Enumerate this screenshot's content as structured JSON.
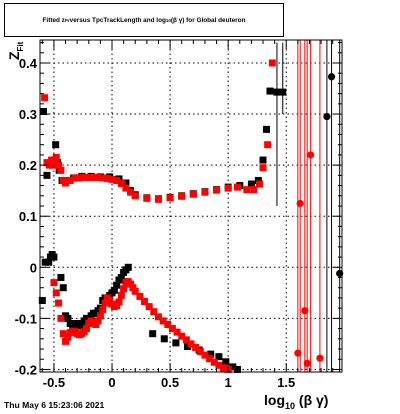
{
  "title": {
    "pre": "Fitted  z",
    "sub1": "Pr",
    "mid": "  versus  TpcTrackLength and log",
    "sub2": "10",
    "post": " (β γ) for Global deuteron"
  },
  "timestamp": "Thu May  6 15:23:06 2021",
  "xlabel": {
    "main": "log",
    "sub": "10",
    "tail": " (β γ)"
  },
  "ylabel": {
    "main": "Z",
    "sub": "Fit"
  },
  "chart_data": {
    "type": "scatter",
    "title": "Fitted z_Pr versus TpcTrackLength and log10(β γ) for Global deuteron",
    "xlabel": "log10(β γ)",
    "ylabel": "Z_Fit",
    "xlim": [
      -0.62,
      1.98
    ],
    "ylim": [
      -0.205,
      0.445
    ],
    "xticks": [
      -0.5,
      0,
      0.5,
      1,
      1.5
    ],
    "xtick_labels": [
      "-0.5",
      "0",
      "0.5",
      "1",
      "1.5"
    ],
    "yticks": [
      -0.2,
      -0.1,
      0,
      0.1,
      0.2,
      0.3,
      0.4
    ],
    "ytick_labels": [
      "-0.2",
      "-0.1",
      "0",
      "0.1",
      "0.2",
      "0.3",
      "0.4"
    ],
    "grid": true,
    "series": [
      {
        "color": "#000000",
        "marker": "square",
        "points": [
          [
            -0.6,
            -0.065
          ],
          [
            -0.59,
            0.305
          ],
          [
            -0.575,
            0.01
          ],
          [
            -0.56,
            0.18
          ],
          [
            -0.545,
            0.01
          ],
          [
            -0.53,
            0.02
          ],
          [
            -0.515,
            0.025
          ],
          [
            -0.5,
            0.02
          ],
          [
            -0.485,
            0.24
          ],
          [
            -0.47,
            0.205
          ],
          [
            -0.455,
            0.19
          ],
          [
            -0.44,
            -0.02
          ],
          [
            -0.43,
            0.17
          ],
          [
            -0.42,
            -0.04
          ],
          [
            -0.4,
            -0.095
          ],
          [
            -0.38,
            -0.1
          ],
          [
            -0.36,
            -0.11
          ],
          [
            -0.34,
            -0.115
          ],
          [
            -0.32,
            -0.12
          ],
          [
            -0.3,
            -0.11
          ],
          [
            -0.28,
            -0.115
          ],
          [
            -0.26,
            -0.11
          ],
          [
            -0.24,
            -0.105
          ],
          [
            -0.22,
            -0.1
          ],
          [
            -0.2,
            -0.105
          ],
          [
            -0.18,
            -0.095
          ],
          [
            -0.16,
            -0.09
          ],
          [
            -0.14,
            -0.09
          ],
          [
            -0.12,
            -0.085
          ],
          [
            -0.1,
            -0.08
          ],
          [
            -0.08,
            -0.065
          ],
          [
            -0.06,
            -0.06
          ],
          [
            -0.04,
            -0.06
          ],
          [
            -0.02,
            -0.055
          ],
          [
            0.0,
            -0.05
          ],
          [
            0.02,
            -0.045
          ],
          [
            0.04,
            -0.035
          ],
          [
            0.06,
            -0.025
          ],
          [
            0.08,
            -0.02
          ],
          [
            0.1,
            -0.01
          ],
          [
            0.12,
            -0.005
          ],
          [
            0.14,
            0.0
          ],
          [
            -0.4,
            0.17
          ],
          [
            -0.33,
            0.175
          ],
          [
            -0.26,
            0.178
          ],
          [
            -0.18,
            0.178
          ],
          [
            -0.1,
            0.177
          ],
          [
            -0.02,
            0.177
          ],
          [
            0.06,
            0.173
          ],
          [
            0.12,
            0.165
          ],
          [
            0.16,
            0.15
          ],
          [
            0.2,
            0.142
          ],
          [
            0.3,
            0.136
          ],
          [
            0.4,
            0.134
          ],
          [
            0.5,
            0.137
          ],
          [
            0.6,
            0.14
          ],
          [
            0.7,
            0.144
          ],
          [
            0.8,
            0.148
          ],
          [
            0.9,
            0.152
          ],
          [
            1.0,
            0.157
          ],
          [
            1.1,
            0.16
          ],
          [
            1.2,
            0.163
          ],
          [
            1.26,
            0.17
          ],
          [
            1.3,
            0.21
          ],
          [
            1.33,
            0.27
          ],
          [
            1.36,
            0.345
          ],
          [
            1.42,
            0.343
          ],
          [
            1.47,
            0.343
          ],
          [
            0.35,
            -0.13
          ],
          [
            0.45,
            -0.14
          ],
          [
            0.55,
            -0.148
          ],
          [
            0.65,
            -0.155
          ],
          [
            0.75,
            -0.162
          ],
          [
            0.85,
            -0.17
          ],
          [
            0.92,
            -0.175
          ],
          [
            0.98,
            -0.185
          ],
          [
            1.04,
            -0.195
          ],
          [
            1.08,
            -0.2
          ],
          [
            1.85,
            0.295
          ],
          [
            1.89,
            0.373
          ],
          [
            1.96,
            -0.012
          ]
        ]
      },
      {
        "color": "#ff0000",
        "marker": "square",
        "points": [
          [
            -0.58,
            0.332
          ],
          [
            -0.56,
            0.205
          ],
          [
            -0.54,
            0.2
          ],
          [
            -0.52,
            0.21
          ],
          [
            -0.5,
            0.2
          ],
          [
            -0.48,
            0.215
          ],
          [
            -0.46,
            0.2
          ],
          [
            -0.44,
            0.19
          ],
          [
            -0.42,
            0.17
          ],
          [
            -0.4,
            0.165
          ],
          [
            -0.36,
            0.17
          ],
          [
            -0.32,
            0.175
          ],
          [
            -0.28,
            0.175
          ],
          [
            -0.24,
            0.176
          ],
          [
            -0.2,
            0.176
          ],
          [
            -0.16,
            0.176
          ],
          [
            -0.12,
            0.176
          ],
          [
            -0.08,
            0.175
          ],
          [
            -0.04,
            0.174
          ],
          [
            0.0,
            0.172
          ],
          [
            0.04,
            0.17
          ],
          [
            0.08,
            0.164
          ],
          [
            0.12,
            0.155
          ],
          [
            0.16,
            0.147
          ],
          [
            0.2,
            0.14
          ],
          [
            0.3,
            0.135
          ],
          [
            0.4,
            0.133
          ],
          [
            0.5,
            0.136
          ],
          [
            0.6,
            0.139
          ],
          [
            0.7,
            0.143
          ],
          [
            0.8,
            0.147
          ],
          [
            0.9,
            0.151
          ],
          [
            1.0,
            0.155
          ],
          [
            1.08,
            0.157
          ],
          [
            1.16,
            0.152
          ],
          [
            1.22,
            0.152
          ],
          [
            1.27,
            0.163
          ],
          [
            1.3,
            0.195
          ],
          [
            1.34,
            0.24
          ],
          [
            1.38,
            0.4
          ],
          [
            -0.5,
            -0.03
          ],
          [
            -0.48,
            -0.05
          ],
          [
            -0.46,
            -0.07
          ],
          [
            -0.44,
            -0.1
          ],
          [
            -0.42,
            -0.13
          ],
          [
            -0.4,
            -0.145
          ],
          [
            -0.38,
            -0.137
          ],
          [
            -0.36,
            -0.128
          ],
          [
            -0.34,
            -0.125
          ],
          [
            -0.32,
            -0.126
          ],
          [
            -0.3,
            -0.13
          ],
          [
            -0.28,
            -0.132
          ],
          [
            -0.26,
            -0.13
          ],
          [
            -0.24,
            -0.126
          ],
          [
            -0.22,
            -0.12
          ],
          [
            -0.2,
            -0.11
          ],
          [
            -0.18,
            -0.105
          ],
          [
            -0.16,
            -0.108
          ],
          [
            -0.14,
            -0.112
          ],
          [
            -0.12,
            -0.105
          ],
          [
            -0.1,
            -0.095
          ],
          [
            -0.08,
            -0.083
          ],
          [
            -0.06,
            -0.07
          ],
          [
            -0.04,
            -0.06
          ],
          [
            -0.02,
            -0.065
          ],
          [
            0.0,
            -0.072
          ],
          [
            0.02,
            -0.077
          ],
          [
            0.04,
            -0.075
          ],
          [
            0.06,
            -0.068
          ],
          [
            0.08,
            -0.055
          ],
          [
            0.1,
            -0.042
          ],
          [
            0.12,
            -0.03
          ],
          [
            0.14,
            -0.028
          ],
          [
            0.16,
            -0.033
          ],
          [
            0.18,
            -0.04
          ],
          [
            0.2,
            -0.047
          ],
          [
            0.24,
            -0.057
          ],
          [
            0.28,
            -0.067
          ],
          [
            0.32,
            -0.077
          ],
          [
            0.36,
            -0.087
          ],
          [
            0.4,
            -0.097
          ],
          [
            0.44,
            -0.105
          ],
          [
            0.48,
            -0.112
          ],
          [
            0.52,
            -0.12
          ],
          [
            0.56,
            -0.127
          ],
          [
            0.6,
            -0.135
          ],
          [
            0.64,
            -0.142
          ],
          [
            0.68,
            -0.15
          ],
          [
            0.72,
            -0.157
          ],
          [
            0.76,
            -0.165
          ],
          [
            0.8,
            -0.172
          ],
          [
            0.84,
            -0.179
          ],
          [
            0.88,
            -0.186
          ],
          [
            0.92,
            -0.192
          ],
          [
            0.96,
            -0.197
          ],
          [
            1.0,
            -0.2
          ],
          [
            1.6,
            -0.168
          ],
          [
            1.62,
            0.125
          ],
          [
            1.66,
            -0.085
          ],
          [
            1.68,
            -0.188
          ],
          [
            1.71,
            0.22
          ],
          [
            1.79,
            -0.178
          ]
        ]
      }
    ]
  }
}
